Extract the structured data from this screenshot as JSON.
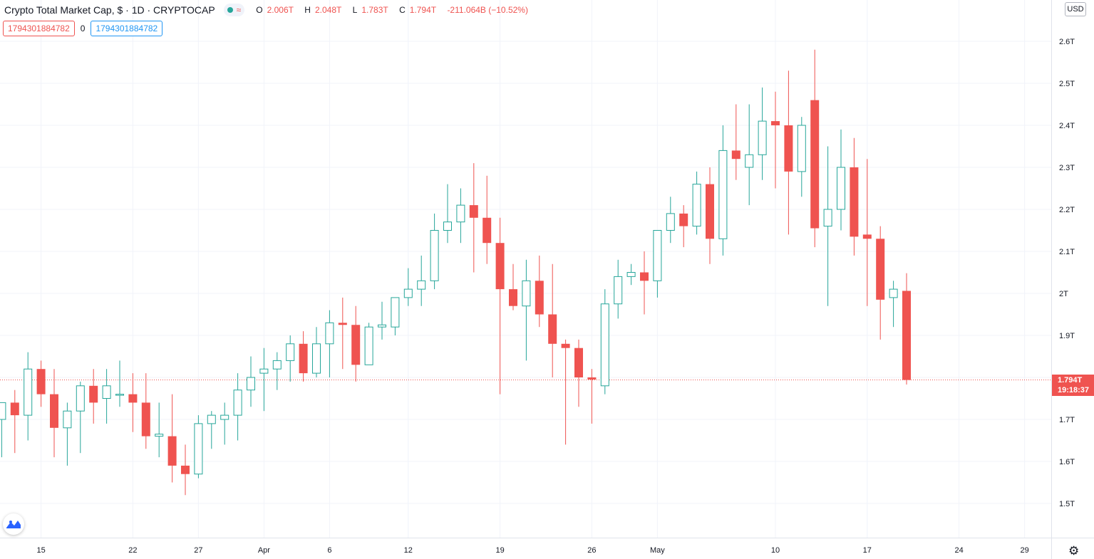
{
  "header": {
    "title": "Crypto Total Market Cap, $ · 1D · CRYPTOCAP",
    "open_key": "O",
    "open_val": "2.006T",
    "high_key": "H",
    "high_val": "2.048T",
    "low_key": "L",
    "low_val": "1.783T",
    "close_key": "C",
    "close_val": "1.794T",
    "change": "-211.064B (−10.52%)",
    "wave_glyph": "≈",
    "study_value_left": "1794301884782",
    "study_zero": "0",
    "study_value_right": "1794301884782"
  },
  "currency_label": "USD",
  "price_tag": {
    "price": "1.794T",
    "countdown": "19:18:37"
  },
  "icons": {
    "logo": "tradingview-logo-icon",
    "settings": "gear-icon"
  },
  "colors": {
    "up": "#26a69a",
    "down": "#ef5350",
    "grid": "#f0f3fa",
    "text": "#131722"
  },
  "chart_data": {
    "type": "candlestick",
    "title": "Crypto Total Market Cap, $ · 1D · CRYPTOCAP",
    "y_unit": "USD",
    "ylim": [
      1.42,
      2.72
    ],
    "y_ticks": [
      1.5,
      1.6,
      1.7,
      1.8,
      1.9,
      2.0,
      2.1,
      2.2,
      2.3,
      2.4,
      2.5,
      2.6
    ],
    "y_tick_labels": [
      "1.5T",
      "1.6T",
      "1.7T",
      "1.8T",
      "1.9T",
      "2T",
      "2.1T",
      "2.2T",
      "2.3T",
      "2.4T",
      "2.5T",
      "2.6T"
    ],
    "x_start": "Mar 12",
    "x_tick_labels": [
      {
        "day": 3,
        "label": "15"
      },
      {
        "day": 10,
        "label": "22"
      },
      {
        "day": 15,
        "label": "27"
      },
      {
        "day": 20,
        "label": "Apr"
      },
      {
        "day": 25,
        "label": "6"
      },
      {
        "day": 31,
        "label": "12"
      },
      {
        "day": 38,
        "label": "19"
      },
      {
        "day": 45,
        "label": "26"
      },
      {
        "day": 50,
        "label": "May"
      },
      {
        "day": 59,
        "label": "10"
      },
      {
        "day": 66,
        "label": "17"
      },
      {
        "day": 73,
        "label": "24"
      },
      {
        "day": 78,
        "label": "29"
      }
    ],
    "last_price": 1.794,
    "candles": [
      [
        1.7,
        1.74,
        1.61,
        1.74
      ],
      [
        1.74,
        1.77,
        1.62,
        1.71
      ],
      [
        1.71,
        1.86,
        1.65,
        1.82
      ],
      [
        1.82,
        1.84,
        1.73,
        1.76
      ],
      [
        1.76,
        1.82,
        1.61,
        1.68
      ],
      [
        1.68,
        1.74,
        1.59,
        1.72
      ],
      [
        1.72,
        1.79,
        1.62,
        1.78
      ],
      [
        1.78,
        1.82,
        1.69,
        1.74
      ],
      [
        1.75,
        1.82,
        1.69,
        1.78
      ],
      [
        1.76,
        1.84,
        1.73,
        1.76
      ],
      [
        1.76,
        1.81,
        1.67,
        1.74
      ],
      [
        1.74,
        1.81,
        1.63,
        1.66
      ],
      [
        1.66,
        1.74,
        1.61,
        1.665
      ],
      [
        1.66,
        1.76,
        1.55,
        1.59
      ],
      [
        1.59,
        1.64,
        1.52,
        1.57
      ],
      [
        1.57,
        1.71,
        1.56,
        1.69
      ],
      [
        1.69,
        1.72,
        1.63,
        1.71
      ],
      [
        1.7,
        1.74,
        1.64,
        1.71
      ],
      [
        1.71,
        1.81,
        1.65,
        1.77
      ],
      [
        1.77,
        1.85,
        1.73,
        1.8
      ],
      [
        1.81,
        1.87,
        1.72,
        1.82
      ],
      [
        1.82,
        1.86,
        1.77,
        1.84
      ],
      [
        1.84,
        1.9,
        1.79,
        1.88
      ],
      [
        1.88,
        1.91,
        1.79,
        1.81
      ],
      [
        1.81,
        1.92,
        1.8,
        1.88
      ],
      [
        1.88,
        1.96,
        1.8,
        1.93
      ],
      [
        1.93,
        1.99,
        1.82,
        1.925
      ],
      [
        1.925,
        1.97,
        1.79,
        1.83
      ],
      [
        1.83,
        1.93,
        1.83,
        1.92
      ],
      [
        1.92,
        1.98,
        1.89,
        1.925
      ],
      [
        1.92,
        1.99,
        1.9,
        1.99
      ],
      [
        1.99,
        2.06,
        1.97,
        2.01
      ],
      [
        2.01,
        2.09,
        1.97,
        2.03
      ],
      [
        2.03,
        2.19,
        2.01,
        2.15
      ],
      [
        2.15,
        2.26,
        2.12,
        2.17
      ],
      [
        2.17,
        2.25,
        2.12,
        2.21
      ],
      [
        2.21,
        2.31,
        2.05,
        2.18
      ],
      [
        2.18,
        2.28,
        2.07,
        2.12
      ],
      [
        2.12,
        2.18,
        1.76,
        2.01
      ],
      [
        2.01,
        2.07,
        1.96,
        1.97
      ],
      [
        1.97,
        2.08,
        1.84,
        2.03
      ],
      [
        2.03,
        2.09,
        1.92,
        1.95
      ],
      [
        1.95,
        2.07,
        1.8,
        1.88
      ],
      [
        1.88,
        1.89,
        1.64,
        1.87
      ],
      [
        1.87,
        1.89,
        1.73,
        1.8
      ],
      [
        1.8,
        1.82,
        1.69,
        1.795
      ],
      [
        1.78,
        2.01,
        1.76,
        1.975
      ],
      [
        1.975,
        2.08,
        1.94,
        2.04
      ],
      [
        2.04,
        2.07,
        2.02,
        2.05
      ],
      [
        2.05,
        2.1,
        1.95,
        2.03
      ],
      [
        2.03,
        2.15,
        1.99,
        2.15
      ],
      [
        2.15,
        2.23,
        2.12,
        2.19
      ],
      [
        2.19,
        2.21,
        2.11,
        2.16
      ],
      [
        2.16,
        2.29,
        2.14,
        2.26
      ],
      [
        2.26,
        2.3,
        2.07,
        2.13
      ],
      [
        2.13,
        2.4,
        2.09,
        2.34
      ],
      [
        2.34,
        2.45,
        2.27,
        2.32
      ],
      [
        2.3,
        2.45,
        2.21,
        2.33
      ],
      [
        2.33,
        2.49,
        2.27,
        2.41
      ],
      [
        2.41,
        2.48,
        2.25,
        2.4
      ],
      [
        2.4,
        2.53,
        2.14,
        2.29
      ],
      [
        2.29,
        2.42,
        2.23,
        2.4
      ],
      [
        2.46,
        2.58,
        2.11,
        2.155
      ],
      [
        2.16,
        2.35,
        1.97,
        2.2
      ],
      [
        2.2,
        2.39,
        2.15,
        2.3
      ],
      [
        2.3,
        2.37,
        2.09,
        2.135
      ],
      [
        2.14,
        2.32,
        1.97,
        2.13
      ],
      [
        2.13,
        2.16,
        1.89,
        1.985
      ],
      [
        1.99,
        2.03,
        1.92,
        2.01
      ],
      [
        2.006,
        2.048,
        1.783,
        1.794
      ]
    ]
  }
}
